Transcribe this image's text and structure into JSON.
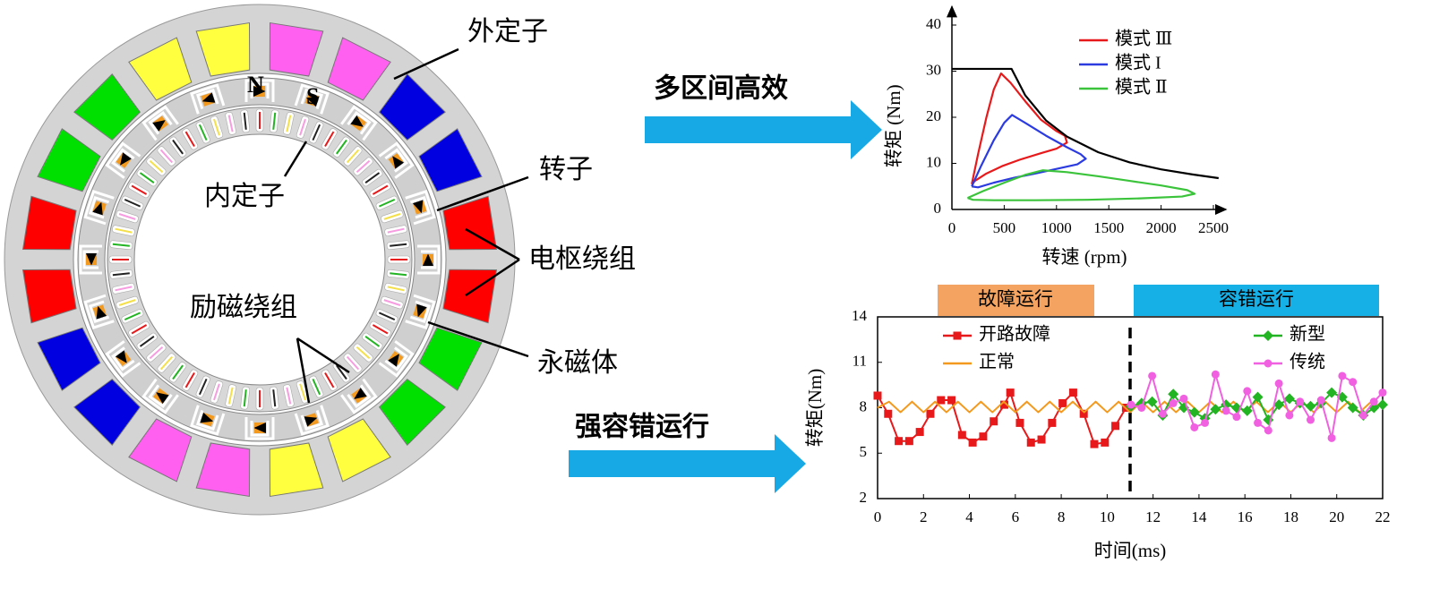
{
  "diagram": {
    "labels": {
      "outer_stator": "外定子",
      "inner_stator": "内定子",
      "rotor": "转子",
      "armature_winding": "电枢绕组",
      "field_winding": "励磁绕组",
      "permanent_magnet": "永磁体",
      "north": "N",
      "south": "S"
    },
    "arrows": [
      "多区间高效",
      "强容错运行"
    ]
  },
  "chart_data": [
    {
      "type": "line",
      "x_label": "转速 (rpm)",
      "y_label": "转矩 (Nm)",
      "xlim": [
        0,
        2620
      ],
      "ylim": [
        0,
        44
      ],
      "xticks": [
        0,
        500,
        1000,
        1500,
        2000,
        2500
      ],
      "yticks": [
        0,
        10,
        20,
        30,
        40
      ],
      "legend": "upper right",
      "series": [
        {
          "name": "模式 Ⅲ",
          "color": "#e8191b",
          "x": [
            190,
            250,
            330,
            400,
            470,
            560,
            700,
            850,
            1000,
            1080,
            1100,
            1000,
            850,
            650,
            480,
            330,
            220,
            190
          ],
          "values": [
            5.5,
            12,
            20,
            26,
            29.5,
            27.5,
            23.5,
            19.5,
            17,
            16,
            14.5,
            13.2,
            12.2,
            10.8,
            9.4,
            7.8,
            6.2,
            5.5
          ]
        },
        {
          "name": "模式 I",
          "color": "#2b3be0",
          "x": [
            190,
            280,
            400,
            500,
            575,
            700,
            900,
            1100,
            1230,
            1280,
            1200,
            1000,
            800,
            600,
            400,
            250,
            190
          ],
          "values": [
            5,
            9.5,
            15,
            18.8,
            20.5,
            18.8,
            16,
            13.5,
            12,
            11,
            9.8,
            8.8,
            7.8,
            6.9,
            5.8,
            4.8,
            5
          ]
        },
        {
          "name": "模式 Ⅱ",
          "color": "#3bc43b",
          "x": [
            150,
            300,
            500,
            700,
            870,
            1100,
            1400,
            1700,
            2000,
            2250,
            2320,
            2200,
            1800,
            1300,
            800,
            400,
            200,
            150
          ],
          "values": [
            2.5,
            4,
            5.8,
            7.5,
            8.5,
            8.1,
            7.2,
            6.2,
            5.2,
            4.2,
            3.4,
            2.8,
            2.4,
            2.1,
            2.0,
            2.0,
            2.1,
            2.5
          ]
        },
        {
          "color": "#000000",
          "x": [
            0,
            570,
            700,
            900,
            1100,
            1400,
            1700,
            2000,
            2300,
            2550
          ],
          "values": [
            30.5,
            30.5,
            24.8,
            19.3,
            15.8,
            12.4,
            10.2,
            8.7,
            7.6,
            6.8
          ]
        }
      ]
    },
    {
      "type": "line",
      "x_label": "时间(ms)",
      "y_label": "转矩(Nm)",
      "xlim": [
        0,
        22
      ],
      "ylim": [
        2,
        14
      ],
      "xticks": [
        0,
        2,
        4,
        6,
        8,
        10,
        12,
        14,
        16,
        18,
        20,
        22
      ],
      "yticks": [
        2,
        5,
        8,
        11,
        14
      ],
      "legend": "top",
      "divider_x": 11,
      "annotations": [
        "故障运行",
        "容错运行"
      ],
      "series": [
        {
          "name": "开路故障",
          "color": "#e8191b",
          "marker": "square",
          "x": [
            0,
            0.46,
            0.92,
            1.38,
            1.84,
            2.3,
            2.76,
            3.22,
            3.68,
            4.14,
            4.6,
            5.06,
            5.52,
            5.78,
            6.2,
            6.68,
            7.14,
            7.6,
            8.06,
            8.52,
            8.98,
            9.44,
            9.9,
            10.36,
            10.82
          ],
          "values": [
            8.8,
            7.6,
            5.8,
            5.8,
            6.4,
            7.6,
            8.5,
            8.5,
            6.2,
            5.7,
            6.1,
            7.1,
            8.2,
            9.0,
            7.0,
            5.7,
            5.9,
            7.0,
            8.3,
            9.0,
            7.6,
            5.6,
            5.7,
            6.8,
            8.0
          ]
        },
        {
          "name": "正常",
          "color": "#f39a1e",
          "x": [
            0,
            0.5,
            1,
            1.5,
            2,
            2.5,
            3,
            3.5,
            4,
            4.5,
            5,
            5.5,
            6,
            6.5,
            7,
            7.5,
            8,
            8.5,
            9,
            9.5,
            10,
            10.5,
            11,
            11.5,
            12,
            12.5,
            13,
            13.5,
            14,
            14.5,
            15,
            15.5,
            16,
            16.5,
            17,
            17.5,
            18,
            18.5,
            19,
            19.5,
            20,
            20.5,
            21,
            21.5,
            22
          ],
          "values": [
            8.0,
            8.4,
            7.7,
            8.4,
            7.7,
            8.4,
            7.7,
            8.4,
            7.7,
            8.4,
            7.7,
            8.4,
            7.7,
            8.4,
            7.7,
            8.4,
            7.7,
            8.4,
            7.7,
            8.4,
            7.7,
            8.4,
            7.7,
            8.4,
            7.7,
            8.4,
            7.7,
            8.4,
            7.7,
            8.4,
            7.7,
            8.4,
            7.7,
            8.4,
            7.7,
            8.4,
            7.7,
            8.4,
            7.7,
            8.4,
            7.7,
            8.4,
            7.7,
            8.4,
            8.0
          ]
        },
        {
          "name": "新型",
          "color": "#22b422",
          "marker": "diamond",
          "x": [
            11.04,
            11.5,
            11.96,
            12.42,
            12.88,
            13.34,
            13.8,
            14.26,
            14.72,
            15.18,
            15.64,
            16.1,
            16.56,
            17.02,
            17.48,
            17.94,
            18.4,
            18.86,
            19.32,
            19.78,
            20.24,
            20.7,
            21.16,
            21.62,
            22
          ],
          "values": [
            8.1,
            8.3,
            8.4,
            7.5,
            8.9,
            8.0,
            7.7,
            7.3,
            7.9,
            8.2,
            8.0,
            7.8,
            8.7,
            7.2,
            8.2,
            8.6,
            8.3,
            8.1,
            8.3,
            9.0,
            8.7,
            8.0,
            7.5,
            8.0,
            8.2
          ]
        },
        {
          "name": "传统",
          "color": "#f060e0",
          "marker": "circle",
          "x": [
            11.04,
            11.5,
            11.96,
            12.42,
            12.88,
            13.34,
            13.8,
            14.26,
            14.72,
            15.18,
            15.64,
            16.1,
            16.56,
            17.02,
            17.48,
            17.94,
            18.4,
            18.86,
            19.32,
            19.78,
            20.24,
            20.7,
            21.16,
            21.62,
            22
          ],
          "values": [
            8.2,
            8.0,
            10.1,
            7.6,
            8.3,
            8.6,
            6.7,
            7.0,
            10.2,
            7.8,
            7.4,
            9.1,
            7.0,
            6.5,
            9.6,
            7.5,
            8.4,
            7.2,
            8.5,
            6.0,
            10.1,
            9.7,
            7.5,
            8.4,
            9.0
          ]
        }
      ]
    }
  ]
}
